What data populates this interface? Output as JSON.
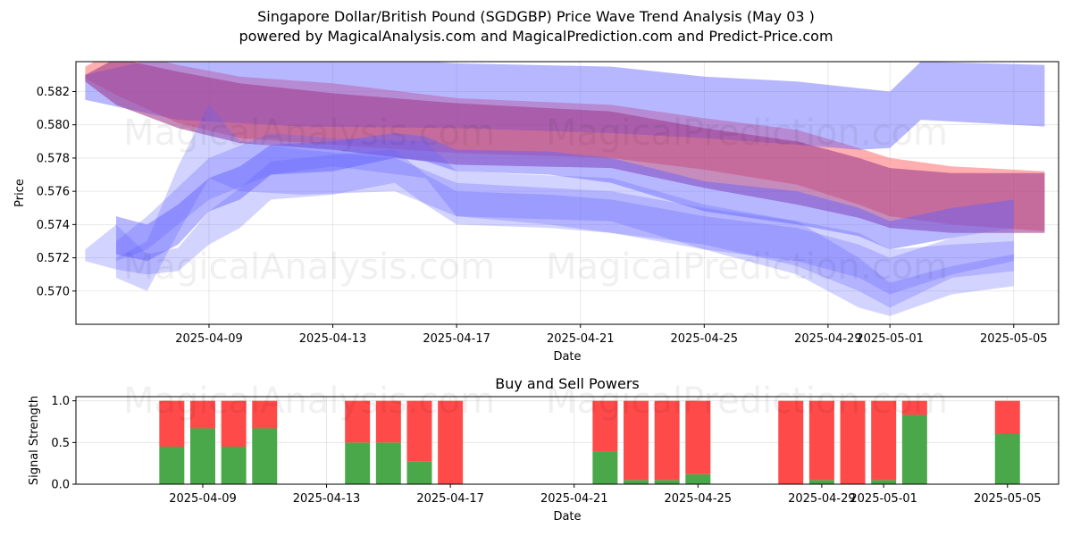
{
  "title": "Singapore Dollar/British Pound (SGDGBP) Price Wave Trend Analysis (May 03 )",
  "subtitle": "powered by MagicalAnalysis.com and MagicalPrediction.com and Predict-Price.com",
  "watermarks": [
    "MagicalAnalysis.com",
    "MagicalPrediction.com"
  ],
  "colors": {
    "red_band": "#ff6060",
    "blue_band": "#6060ff",
    "purple_band": "#a04090",
    "buy": "#4aa84a",
    "sell": "#ff4a4a"
  },
  "chart_data": [
    {
      "type": "area",
      "title": "",
      "xlabel": "Date",
      "ylabel": "Price",
      "x_range": [
        "2025-04-05",
        "2025-05-06"
      ],
      "ylim": [
        0.568,
        0.5838
      ],
      "x_ticks": [
        "2025-04-09",
        "2025-04-13",
        "2025-04-17",
        "2025-04-21",
        "2025-04-25",
        "2025-04-29",
        "2025-05-01",
        "2025-05-05"
      ],
      "y_ticks": [
        "0.570",
        "0.572",
        "0.574",
        "0.576",
        "0.578",
        "0.580",
        "0.582"
      ],
      "grid": true,
      "series": [
        {
          "color": "red",
          "x": [
            "2025-04-05",
            "2025-04-06",
            "2025-04-08",
            "2025-04-10",
            "2025-04-13",
            "2025-04-17",
            "2025-04-22",
            "2025-04-25",
            "2025-04-28",
            "2025-04-30",
            "2025-05-01",
            "2025-05-03",
            "2025-05-06"
          ],
          "upper": [
            0.5835,
            0.5845,
            0.5836,
            0.5829,
            0.5825,
            0.5816,
            0.5812,
            0.5804,
            0.5797,
            0.5786,
            0.578,
            0.5775,
            0.5772
          ],
          "lower": [
            0.5828,
            0.5818,
            0.5801,
            0.5792,
            0.5788,
            0.5783,
            0.578,
            0.5773,
            0.5764,
            0.5752,
            0.5745,
            0.574,
            0.5736
          ]
        },
        {
          "color": "blue",
          "x": [
            "2025-04-05",
            "2025-04-08",
            "2025-04-12",
            "2025-04-17",
            "2025-04-22",
            "2025-04-25",
            "2025-04-28",
            "2025-04-30",
            "2025-05-01",
            "2025-05-02",
            "2025-05-06"
          ],
          "upper": [
            0.583,
            0.5843,
            0.5843,
            0.5837,
            0.5835,
            0.5829,
            0.5826,
            0.5822,
            0.582,
            0.5838,
            0.5836
          ],
          "lower": [
            0.5815,
            0.5803,
            0.5799,
            0.5798,
            0.5795,
            0.5792,
            0.5788,
            0.5785,
            0.5786,
            0.5803,
            0.5799
          ]
        },
        {
          "color": "purple",
          "x": [
            "2025-04-05",
            "2025-04-06",
            "2025-04-08",
            "2025-04-10",
            "2025-04-13",
            "2025-04-17",
            "2025-04-22",
            "2025-04-25",
            "2025-04-28",
            "2025-04-30",
            "2025-05-01",
            "2025-05-03",
            "2025-05-06"
          ],
          "upper": [
            0.583,
            0.584,
            0.5832,
            0.5825,
            0.5819,
            0.5813,
            0.5808,
            0.5798,
            0.579,
            0.578,
            0.5774,
            0.5771,
            0.5771
          ],
          "lower": [
            0.5826,
            0.5812,
            0.5798,
            0.5789,
            0.5785,
            0.5776,
            0.5774,
            0.5762,
            0.5752,
            0.5744,
            0.5738,
            0.5735,
            0.5735
          ]
        },
        {
          "color": "blue",
          "x": [
            "2025-04-06",
            "2025-04-07",
            "2025-04-08",
            "2025-04-09",
            "2025-04-10",
            "2025-04-11",
            "2025-04-13",
            "2025-04-15",
            "2025-04-16",
            "2025-04-17",
            "2025-04-20",
            "2025-04-22",
            "2025-04-25",
            "2025-04-28",
            "2025-04-30",
            "2025-05-01",
            "2025-05-03",
            "2025-05-05"
          ],
          "upper": [
            0.5745,
            0.574,
            0.5752,
            0.5768,
            0.5775,
            0.5788,
            0.579,
            0.5795,
            0.5793,
            0.5785,
            0.5784,
            0.578,
            0.5766,
            0.576,
            0.575,
            0.5742,
            0.575,
            0.5755
          ],
          "lower": [
            0.5722,
            0.5718,
            0.5728,
            0.5748,
            0.5755,
            0.577,
            0.5772,
            0.578,
            0.5778,
            0.5772,
            0.577,
            0.5765,
            0.5748,
            0.574,
            0.5733,
            0.5725,
            0.5732,
            0.5738
          ]
        },
        {
          "color": "blue",
          "x": [
            "2025-04-05",
            "2025-04-06",
            "2025-04-07",
            "2025-04-08",
            "2025-04-09",
            "2025-04-10",
            "2025-04-11",
            "2025-04-13",
            "2025-04-15",
            "2025-04-16",
            "2025-04-17",
            "2025-04-20",
            "2025-04-22",
            "2025-04-25",
            "2025-04-28",
            "2025-04-30",
            "2025-05-01",
            "2025-05-03",
            "2025-05-05"
          ],
          "upper": [
            0.5725,
            0.574,
            0.5722,
            0.5726,
            0.5748,
            0.5762,
            0.5778,
            0.5782,
            0.5785,
            0.577,
            0.576,
            0.5758,
            0.5755,
            0.5745,
            0.5738,
            0.5728,
            0.572,
            0.5732,
            0.5738
          ],
          "lower": [
            0.5718,
            0.5713,
            0.571,
            0.5712,
            0.5728,
            0.5738,
            0.5755,
            0.5758,
            0.5765,
            0.5752,
            0.574,
            0.5738,
            0.5735,
            0.5725,
            0.5718,
            0.5708,
            0.5698,
            0.571,
            0.5718
          ]
        },
        {
          "color": "blue",
          "x": [
            "2025-04-06",
            "2025-04-07",
            "2025-04-08",
            "2025-04-09",
            "2025-04-10",
            "2025-04-12",
            "2025-04-15",
            "2025-04-17",
            "2025-04-20",
            "2025-04-22",
            "2025-04-25",
            "2025-04-28",
            "2025-04-30",
            "2025-05-01",
            "2025-05-03",
            "2025-05-05"
          ],
          "upper": [
            0.572,
            0.573,
            0.5775,
            0.5812,
            0.579,
            0.5785,
            0.578,
            0.5765,
            0.5762,
            0.576,
            0.575,
            0.5742,
            0.5735,
            0.5725,
            0.5728,
            0.573
          ],
          "lower": [
            0.5708,
            0.57,
            0.5735,
            0.5768,
            0.576,
            0.5758,
            0.576,
            0.5745,
            0.574,
            0.5735,
            0.5728,
            0.5715,
            0.57,
            0.569,
            0.5708,
            0.5712
          ]
        },
        {
          "color": "blue",
          "x": [
            "2025-04-06",
            "2025-04-07",
            "2025-04-09",
            "2025-04-11",
            "2025-04-13",
            "2025-04-16",
            "2025-04-17",
            "2025-04-22",
            "2025-04-25",
            "2025-04-28",
            "2025-04-30",
            "2025-05-01",
            "2025-05-03",
            "2025-05-05"
          ],
          "upper": [
            0.573,
            0.5745,
            0.578,
            0.5795,
            0.5792,
            0.579,
            0.5772,
            0.5768,
            0.5752,
            0.5742,
            0.572,
            0.5705,
            0.5715,
            0.5722
          ],
          "lower": [
            0.5718,
            0.5725,
            0.5755,
            0.577,
            0.5775,
            0.5768,
            0.5745,
            0.5742,
            0.5725,
            0.571,
            0.569,
            0.5685,
            0.5698,
            0.5703
          ]
        }
      ]
    },
    {
      "type": "bar",
      "title": "Buy and Sell Powers",
      "xlabel": "Date",
      "ylabel": "Signal Strength",
      "ylim": [
        0,
        1.05
      ],
      "x_ticks": [
        "2025-04-09",
        "2025-04-13",
        "2025-04-17",
        "2025-04-21",
        "2025-04-25",
        "2025-04-29",
        "2025-05-01",
        "2025-05-05"
      ],
      "y_ticks": [
        "0.0",
        "0.5",
        "1.0"
      ],
      "grid": true,
      "stacked": true,
      "categories": [
        "2025-04-08",
        "2025-04-09",
        "2025-04-10",
        "2025-04-11",
        "2025-04-14",
        "2025-04-15",
        "2025-04-16",
        "2025-04-17",
        "2025-04-22",
        "2025-04-23",
        "2025-04-24",
        "2025-04-25",
        "2025-04-28",
        "2025-04-29",
        "2025-04-30",
        "2025-05-01",
        "2025-05-02",
        "2025-05-05"
      ],
      "series": [
        {
          "color": "green",
          "values": [
            0.45,
            0.67,
            0.45,
            0.67,
            0.5,
            0.5,
            0.27,
            0.0,
            0.39,
            0.05,
            0.05,
            0.12,
            0.0,
            0.05,
            0.0,
            0.05,
            0.83,
            0.6
          ]
        },
        {
          "color": "red",
          "values": [
            0.55,
            0.33,
            0.55,
            0.33,
            0.5,
            0.5,
            0.73,
            1.0,
            0.61,
            0.95,
            0.95,
            0.88,
            1.0,
            0.95,
            1.0,
            0.95,
            0.17,
            0.4
          ]
        }
      ]
    }
  ]
}
